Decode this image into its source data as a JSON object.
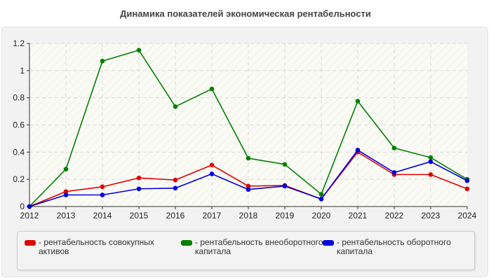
{
  "chart_data": {
    "type": "line",
    "title": "Динамика показателей экономическая рентабельности",
    "xlabel": "",
    "ylabel": "",
    "categories": [
      "2012",
      "2013",
      "2014",
      "2015",
      "2016",
      "2017",
      "2018",
      "2019",
      "2020",
      "2021",
      "2022",
      "2023",
      "2024"
    ],
    "ylim": [
      0,
      1.2
    ],
    "yticks": [
      "0",
      "0.2",
      "0.4",
      "0.6",
      "0.8",
      "1",
      "1.2"
    ],
    "grid": true,
    "legend_position": "bottom",
    "series": [
      {
        "name": "- рентабельность совокупных активов",
        "color": "#e00000",
        "values": [
          0,
          0.11,
          0.145,
          0.21,
          0.195,
          0.305,
          0.15,
          0.155,
          0.055,
          0.4,
          0.235,
          0.235,
          0.13
        ]
      },
      {
        "name": "- рентабельность внеоборотного капитала",
        "color": "#008000",
        "values": [
          0,
          0.275,
          1.07,
          1.15,
          0.735,
          0.865,
          0.355,
          0.31,
          0.09,
          0.775,
          0.43,
          0.36,
          0.2
        ]
      },
      {
        "name": "- рентабельность оборотного капитала",
        "color": "#0000e0",
        "values": [
          0,
          0.085,
          0.085,
          0.13,
          0.135,
          0.24,
          0.125,
          0.15,
          0.055,
          0.415,
          0.25,
          0.33,
          0.19
        ]
      }
    ]
  }
}
